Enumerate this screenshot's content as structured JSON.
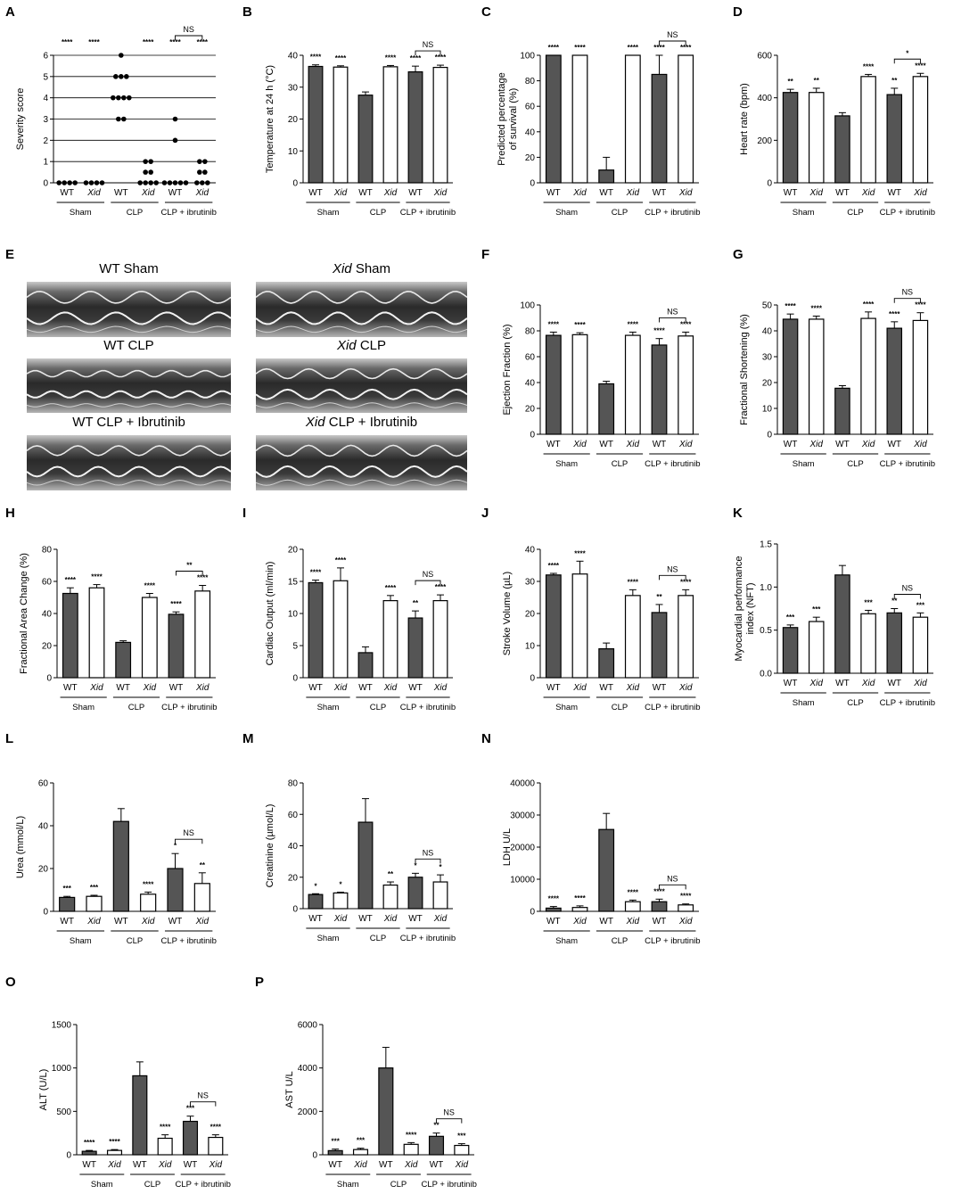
{
  "colors": {
    "wt_bar": "#555555",
    "xid_bar": "#ffffff",
    "stroke": "#000000"
  },
  "categories": [
    "WT",
    "Xid",
    "WT",
    "Xid",
    "WT",
    "Xid"
  ],
  "groups": [
    "Sham",
    "CLP",
    "CLP + ibrutinib"
  ],
  "echo": {
    "letter": "E",
    "captions": [
      {
        "prefix": "WT",
        "suffix": " Sham",
        "italic": false
      },
      {
        "prefix": "Xid",
        "suffix": " Sham",
        "italic": true
      },
      {
        "prefix": "WT",
        "suffix": " CLP",
        "italic": false
      },
      {
        "prefix": "Xid",
        "suffix": " CLP",
        "italic": true
      },
      {
        "prefix": "WT",
        "suffix": " CLP + Ibrutinib",
        "italic": false
      },
      {
        "prefix": "Xid",
        "suffix": " CLP + Ibrutinib",
        "italic": true
      }
    ]
  },
  "chart_data": [
    {
      "letter": "A",
      "type": "scatter",
      "ylabel": "Severity score",
      "ylim": [
        0,
        6
      ],
      "ticks": [
        0,
        1,
        2,
        3,
        4,
        5,
        6
      ],
      "grid": true,
      "points": [
        [
          0,
          0,
          0,
          0
        ],
        [
          0,
          0,
          0,
          0
        ],
        [
          6,
          5,
          5,
          5,
          4,
          4,
          4,
          4,
          3,
          3
        ],
        [
          1,
          1,
          0.5,
          0.5,
          0,
          0,
          0,
          0
        ],
        [
          3,
          2,
          0,
          0,
          0,
          0,
          0
        ],
        [
          1,
          1,
          0.5,
          0.5,
          0,
          0,
          0
        ]
      ],
      "stars": [
        "****",
        "****",
        "",
        "****",
        "****",
        "****"
      ],
      "bracket": {
        "label": "NS"
      }
    },
    {
      "letter": "B",
      "type": "bar",
      "ylabel": "Temperature at 24 h (°C)",
      "ylim": [
        0,
        40
      ],
      "ticks": [
        0,
        10,
        20,
        30,
        40
      ],
      "values": [
        36.5,
        36.3,
        27.5,
        36.4,
        34.8,
        36.2
      ],
      "errors": [
        0.5,
        0.4,
        1.0,
        0.4,
        1.8,
        0.7
      ],
      "stars": [
        "****",
        "****",
        "",
        "****",
        "****",
        "****"
      ],
      "bracket": {
        "label": "NS"
      }
    },
    {
      "letter": "C",
      "type": "bar",
      "ylabel": "Predicted  percentage\nof survival (%)",
      "ylim": [
        0,
        100
      ],
      "ticks": [
        0,
        20,
        40,
        60,
        80,
        100
      ],
      "values": [
        100,
        100,
        10,
        100,
        85,
        100
      ],
      "errors": [
        0,
        0,
        10,
        0,
        15,
        0
      ],
      "stars": [
        "****",
        "****",
        "",
        "****",
        "****",
        "****"
      ],
      "bracket": {
        "label": "NS"
      }
    },
    {
      "letter": "D",
      "type": "bar",
      "ylabel": "Heart rate (bpm)",
      "ylim": [
        0,
        600
      ],
      "ticks": [
        0,
        200,
        400,
        600
      ],
      "values": [
        425,
        425,
        315,
        500,
        415,
        500
      ],
      "errors": [
        15,
        20,
        15,
        10,
        30,
        15
      ],
      "stars": [
        "**",
        "**",
        "",
        "****",
        "**",
        "****"
      ],
      "bracket": {
        "label": "*"
      }
    },
    {
      "letter": "F",
      "type": "bar",
      "ylabel": "Ejection Fraction (%)",
      "ylim": [
        0,
        100
      ],
      "ticks": [
        0,
        20,
        40,
        60,
        80,
        100
      ],
      "values": [
        76.5,
        77,
        39,
        76.5,
        69,
        76
      ],
      "errors": [
        2.5,
        1.5,
        2,
        2.5,
        5,
        3
      ],
      "stars": [
        "****",
        "****",
        "",
        "****",
        "****",
        "****"
      ],
      "bracket": {
        "label": "NS"
      }
    },
    {
      "letter": "G",
      "type": "bar",
      "ylabel": "Fractional Shortening (%)",
      "ylim": [
        0,
        50
      ],
      "ticks": [
        0,
        10,
        20,
        30,
        40,
        50
      ],
      "values": [
        44.5,
        44.5,
        17.8,
        44.8,
        41,
        44
      ],
      "errors": [
        2,
        1.2,
        1,
        2.5,
        2.5,
        3
      ],
      "stars": [
        "****",
        "****",
        "",
        "****",
        "****",
        "****"
      ],
      "bracket": {
        "label": "NS"
      }
    },
    {
      "letter": "H",
      "type": "bar",
      "ylabel": "Fractional Area Change (%)",
      "ylim": [
        0,
        80
      ],
      "ticks": [
        0,
        20,
        40,
        60,
        80
      ],
      "values": [
        52.5,
        56,
        22,
        50,
        39.5,
        54
      ],
      "errors": [
        3.5,
        2,
        1,
        2.5,
        1.5,
        3.5
      ],
      "stars": [
        "****",
        "****",
        "",
        "****",
        "****",
        "****"
      ],
      "bracket": {
        "label": "**"
      }
    },
    {
      "letter": "I",
      "type": "bar",
      "ylabel": "Cardiac Output (ml/min)",
      "ylim": [
        0,
        20
      ],
      "ticks": [
        0,
        5,
        10,
        15,
        20
      ],
      "values": [
        14.8,
        15.1,
        3.9,
        12,
        9.3,
        12
      ],
      "errors": [
        0.4,
        2,
        0.9,
        0.8,
        1.1,
        0.9
      ],
      "stars": [
        "****",
        "****",
        "",
        "****",
        "**",
        "****"
      ],
      "bracket": {
        "label": "NS"
      }
    },
    {
      "letter": "J",
      "type": "bar",
      "ylabel": "Stroke Volume (µL)",
      "ylim": [
        0,
        40
      ],
      "ticks": [
        0,
        10,
        20,
        30,
        40
      ],
      "values": [
        32,
        32.3,
        9,
        25.6,
        20.3,
        25.6
      ],
      "errors": [
        0.5,
        4,
        1.8,
        1.8,
        2.5,
        1.8
      ],
      "stars": [
        "****",
        "****",
        "",
        "****",
        "**",
        "****"
      ],
      "bracket": {
        "label": "NS"
      }
    },
    {
      "letter": "K",
      "type": "bar",
      "ylabel": "Myocardial performance\nindex (NFT)",
      "ylim": [
        0,
        1.5
      ],
      "ticks": [
        0,
        0.5,
        1.0,
        1.5
      ],
      "tick_labels": [
        "0.0",
        "0.5",
        "1.0",
        "1.5"
      ],
      "values": [
        0.53,
        0.6,
        1.14,
        0.69,
        0.7,
        0.65
      ],
      "errors": [
        0.03,
        0.05,
        0.11,
        0.04,
        0.05,
        0.05
      ],
      "stars": [
        "***",
        "***",
        "",
        "***",
        "**",
        "***"
      ],
      "bracket": {
        "label": "NS"
      }
    },
    {
      "letter": "L",
      "type": "bar",
      "ylabel": "Urea (mmol/L)",
      "ylim": [
        0,
        60
      ],
      "ticks": [
        0,
        20,
        40,
        60
      ],
      "values": [
        6.5,
        7,
        42,
        8,
        20,
        13
      ],
      "errors": [
        0.5,
        0.5,
        6,
        1,
        7,
        5
      ],
      "stars": [
        "***",
        "***",
        "",
        "****",
        "*",
        "**"
      ],
      "bracket": {
        "label": "NS"
      }
    },
    {
      "letter": "M",
      "type": "bar",
      "ylabel": "Creatinine (µmol/L)",
      "ylim": [
        0,
        80
      ],
      "ticks": [
        0,
        20,
        40,
        60,
        80
      ],
      "values": [
        9,
        10,
        55,
        15,
        20,
        17
      ],
      "errors": [
        0.5,
        0.5,
        15,
        2,
        2.5,
        4.5
      ],
      "stars": [
        "*",
        "*",
        "",
        "**",
        "*",
        "*"
      ],
      "bracket": {
        "label": "NS"
      }
    },
    {
      "letter": "N",
      "type": "bar",
      "ylabel": "LDH U/L",
      "ylim": [
        0,
        40000
      ],
      "ticks": [
        0,
        10000,
        20000,
        30000,
        40000
      ],
      "values": [
        1000,
        1200,
        25500,
        3000,
        3000,
        2000
      ],
      "errors": [
        500,
        500,
        5000,
        500,
        800,
        300
      ],
      "stars": [
        "****",
        "****",
        "",
        "****",
        "****",
        "****"
      ],
      "bracket": {
        "label": "NS"
      }
    },
    {
      "letter": "O",
      "type": "bar",
      "ylabel": "ALT (U/L)",
      "ylim": [
        0,
        1500
      ],
      "ticks": [
        0,
        500,
        1000,
        1500
      ],
      "values": [
        40,
        50,
        910,
        190,
        385,
        200
      ],
      "errors": [
        10,
        10,
        160,
        40,
        60,
        30
      ],
      "stars": [
        "****",
        "****",
        "",
        "****",
        "***",
        "****"
      ],
      "bracket": {
        "label": "NS"
      }
    },
    {
      "letter": "P",
      "type": "bar",
      "ylabel": "AST U/L",
      "ylim": [
        0,
        6000
      ],
      "ticks": [
        0,
        2000,
        4000,
        6000
      ],
      "values": [
        190,
        240,
        4000,
        480,
        850,
        430
      ],
      "errors": [
        70,
        60,
        950,
        80,
        150,
        80
      ],
      "stars": [
        "***",
        "***",
        "",
        "****",
        "**",
        "***"
      ],
      "bracket": {
        "label": "NS"
      }
    }
  ]
}
